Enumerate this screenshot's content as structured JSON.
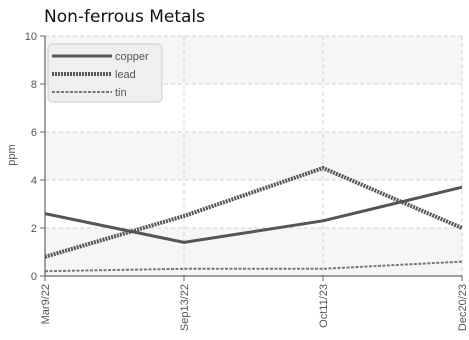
{
  "chart_data": {
    "type": "line",
    "title": "Non-ferrous Metals",
    "ylabel": "ppm",
    "xlabel": "",
    "ylim": [
      0,
      10
    ],
    "yticks": [
      0,
      2,
      4,
      6,
      8,
      10
    ],
    "categories": [
      "Mar9/22",
      "Sep13/22",
      "Oct11/23",
      "Dec20/23"
    ],
    "grid": true,
    "legend_position": "top-left",
    "series": [
      {
        "name": "copper",
        "values": [
          2.6,
          1.4,
          2.3,
          3.7
        ],
        "color": "#555555",
        "style": "solid"
      },
      {
        "name": "lead",
        "values": [
          0.8,
          2.5,
          4.5,
          2.0
        ],
        "color": "#555555",
        "style": "dotted"
      },
      {
        "name": "tin",
        "values": [
          0.2,
          0.3,
          0.3,
          0.6
        ],
        "color": "#777777",
        "style": "dashed"
      }
    ]
  }
}
